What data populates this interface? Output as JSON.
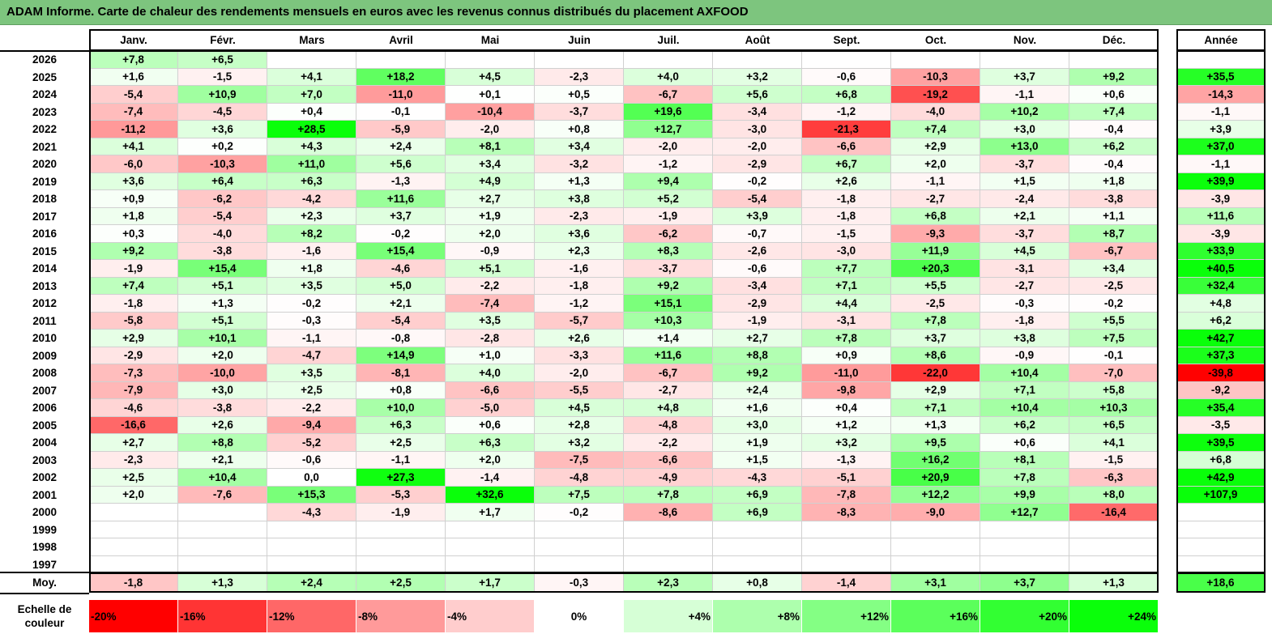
{
  "title": "ADAM Informe. Carte de chaleur des rendements mensuels en euros avec les revenus connus distribués du placement AXFOOD",
  "chart_data": {
    "type": "heatmap",
    "months": [
      "Janv.",
      "Févr.",
      "Mars",
      "Avril",
      "Mai",
      "Juin",
      "Juil.",
      "Août",
      "Sept.",
      "Oct.",
      "Nov.",
      "Déc."
    ],
    "year_header": "Année",
    "average_label": "Moy.",
    "rows": [
      {
        "year": "2026",
        "values": [
          7.8,
          6.5,
          null,
          null,
          null,
          null,
          null,
          null,
          null,
          null,
          null,
          null
        ],
        "annual": null
      },
      {
        "year": "2025",
        "values": [
          1.6,
          -1.5,
          4.1,
          18.2,
          4.5,
          -2.3,
          4.0,
          3.2,
          -0.6,
          -10.3,
          3.7,
          9.2
        ],
        "annual": 35.5
      },
      {
        "year": "2024",
        "values": [
          -5.4,
          10.9,
          7.0,
          -11.0,
          0.1,
          0.5,
          -6.7,
          5.6,
          6.8,
          -19.2,
          -1.1,
          0.6
        ],
        "annual": -14.3
      },
      {
        "year": "2023",
        "values": [
          -7.4,
          -4.5,
          0.4,
          -0.1,
          -10.4,
          -3.7,
          19.6,
          -3.4,
          -1.2,
          -4.0,
          10.2,
          7.4
        ],
        "annual": -1.1
      },
      {
        "year": "2022",
        "values": [
          -11.2,
          3.6,
          28.5,
          -5.9,
          -2.0,
          0.8,
          12.7,
          -3.0,
          -21.3,
          7.4,
          3.0,
          -0.4
        ],
        "annual": 3.9
      },
      {
        "year": "2021",
        "values": [
          4.1,
          0.2,
          4.3,
          2.4,
          8.1,
          3.4,
          -2.0,
          -2.0,
          -6.6,
          2.9,
          13.0,
          6.2
        ],
        "annual": 37.0
      },
      {
        "year": "2020",
        "values": [
          -6.0,
          -10.3,
          11.0,
          5.6,
          3.4,
          -3.2,
          -1.2,
          -2.9,
          6.7,
          2.0,
          -3.7,
          -0.4
        ],
        "annual": -1.1
      },
      {
        "year": "2019",
        "values": [
          3.6,
          6.4,
          6.3,
          -1.3,
          4.9,
          1.3,
          9.4,
          -0.2,
          2.6,
          -1.1,
          1.5,
          1.8
        ],
        "annual": 39.9
      },
      {
        "year": "2018",
        "values": [
          0.9,
          -6.2,
          -4.2,
          11.6,
          2.7,
          3.8,
          5.2,
          -5.4,
          -1.8,
          -2.7,
          -2.4,
          -3.8
        ],
        "annual": -3.9
      },
      {
        "year": "2017",
        "values": [
          1.8,
          -5.4,
          2.3,
          3.7,
          1.9,
          -2.3,
          -1.9,
          3.9,
          -1.8,
          6.8,
          2.1,
          1.1
        ],
        "annual": 11.6
      },
      {
        "year": "2016",
        "values": [
          0.3,
          -4.0,
          8.2,
          -0.2,
          2.0,
          3.6,
          -6.2,
          -0.7,
          -1.5,
          -9.3,
          -3.7,
          8.7
        ],
        "annual": -3.9
      },
      {
        "year": "2015",
        "values": [
          9.2,
          -3.8,
          -1.6,
          15.4,
          -0.9,
          2.3,
          8.3,
          -2.6,
          -3.0,
          11.9,
          4.5,
          -6.7
        ],
        "annual": 33.9
      },
      {
        "year": "2014",
        "values": [
          -1.9,
          15.4,
          1.8,
          -4.6,
          5.1,
          -1.6,
          -3.7,
          -0.6,
          7.7,
          20.3,
          -3.1,
          3.4
        ],
        "annual": 40.5
      },
      {
        "year": "2013",
        "values": [
          7.4,
          5.1,
          3.5,
          5.0,
          -2.2,
          -1.8,
          9.2,
          -3.4,
          7.1,
          5.5,
          -2.7,
          -2.5
        ],
        "annual": 32.4
      },
      {
        "year": "2012",
        "values": [
          -1.8,
          1.3,
          -0.2,
          2.1,
          -7.4,
          -1.2,
          15.1,
          -2.9,
          4.4,
          -2.5,
          -0.3,
          -0.2
        ],
        "annual": 4.8
      },
      {
        "year": "2011",
        "values": [
          -5.8,
          5.1,
          -0.3,
          -5.4,
          3.5,
          -5.7,
          10.3,
          -1.9,
          -3.1,
          7.8,
          -1.8,
          5.5
        ],
        "annual": 6.2
      },
      {
        "year": "2010",
        "values": [
          2.9,
          10.1,
          -1.1,
          -0.8,
          -2.8,
          2.6,
          1.4,
          2.7,
          7.8,
          3.7,
          3.8,
          7.5
        ],
        "annual": 42.7
      },
      {
        "year": "2009",
        "values": [
          -2.9,
          2.0,
          -4.7,
          14.9,
          1.0,
          -3.3,
          11.6,
          8.8,
          0.9,
          8.6,
          -0.9,
          -0.1
        ],
        "annual": 37.3
      },
      {
        "year": "2008",
        "values": [
          -7.3,
          -10.0,
          3.5,
          -8.1,
          4.0,
          -2.0,
          -6.7,
          9.2,
          -11.0,
          -22.0,
          10.4,
          -7.0
        ],
        "annual": -39.8
      },
      {
        "year": "2007",
        "values": [
          -7.9,
          3.0,
          2.5,
          0.8,
          -6.6,
          -5.5,
          -2.7,
          2.4,
          -9.8,
          2.9,
          7.1,
          5.8
        ],
        "annual": -9.2
      },
      {
        "year": "2006",
        "values": [
          -4.6,
          -3.8,
          -2.2,
          10.0,
          -5.0,
          4.5,
          4.8,
          1.6,
          0.4,
          7.1,
          10.4,
          10.3
        ],
        "annual": 35.4
      },
      {
        "year": "2005",
        "values": [
          -16.6,
          2.6,
          -9.4,
          6.3,
          0.6,
          2.8,
          -4.8,
          3.0,
          1.2,
          1.3,
          6.2,
          6.5
        ],
        "annual": -3.5
      },
      {
        "year": "2004",
        "values": [
          2.7,
          8.8,
          -5.2,
          2.5,
          6.3,
          3.2,
          -2.2,
          1.9,
          3.2,
          9.5,
          0.6,
          4.1
        ],
        "annual": 39.5
      },
      {
        "year": "2003",
        "values": [
          -2.3,
          2.1,
          -0.6,
          -1.1,
          2.0,
          -7.5,
          -6.6,
          1.5,
          -1.3,
          16.2,
          8.1,
          -1.5
        ],
        "annual": 6.8
      },
      {
        "year": "2002",
        "values": [
          2.5,
          10.4,
          0.0,
          27.3,
          -1.4,
          -4.8,
          -4.9,
          -4.3,
          -5.1,
          20.9,
          7.8,
          -6.3
        ],
        "annual": 42.9
      },
      {
        "year": "2001",
        "values": [
          2.0,
          -7.6,
          15.3,
          -5.3,
          32.6,
          7.5,
          7.8,
          6.9,
          -7.8,
          12.2,
          9.9,
          8.0
        ],
        "annual": 107.9
      },
      {
        "year": "2000",
        "values": [
          null,
          null,
          -4.3,
          -1.9,
          1.7,
          -0.2,
          -8.6,
          6.9,
          -8.3,
          -9.0,
          12.7,
          -16.4
        ],
        "annual": null
      },
      {
        "year": "1999",
        "values": [
          null,
          null,
          null,
          null,
          null,
          null,
          null,
          null,
          null,
          null,
          null,
          null
        ],
        "annual": null
      },
      {
        "year": "1998",
        "values": [
          null,
          null,
          null,
          null,
          null,
          null,
          null,
          null,
          null,
          null,
          null,
          null
        ],
        "annual": null
      },
      {
        "year": "1997",
        "values": [
          null,
          null,
          null,
          null,
          null,
          null,
          null,
          null,
          null,
          null,
          null,
          null
        ],
        "annual": null
      }
    ],
    "averages": [
      -1.8,
      1.3,
      2.4,
      2.5,
      1.7,
      -0.3,
      2.3,
      0.8,
      -1.4,
      3.1,
      3.7,
      1.3
    ],
    "annual_average": 18.6,
    "color_scale": {
      "label": "Echelle de couleur",
      "steps": [
        {
          "label": "-20%",
          "value": -20,
          "color": "#ff0000"
        },
        {
          "label": "-16%",
          "value": -16,
          "color": "#ff3434"
        },
        {
          "label": "-12%",
          "value": -12,
          "color": "#ff6767"
        },
        {
          "label": "-8%",
          "value": -8,
          "color": "#ff9a9a"
        },
        {
          "label": "-4%",
          "value": -4,
          "color": "#ffcdcd"
        },
        {
          "label": "0%",
          "value": 0,
          "color": "#ffffff"
        },
        {
          "label": "+4%",
          "value": 4,
          "color": "#d6ffd6"
        },
        {
          "label": "+8%",
          "value": 8,
          "color": "#adffad"
        },
        {
          "label": "+12%",
          "value": 12,
          "color": "#84ff84"
        },
        {
          "label": "+16%",
          "value": 16,
          "color": "#5bff5b"
        },
        {
          "label": "+20%",
          "value": 20,
          "color": "#32ff32"
        },
        {
          "label": "+24%",
          "value": 24,
          "color": "#0aff0a"
        }
      ]
    }
  }
}
